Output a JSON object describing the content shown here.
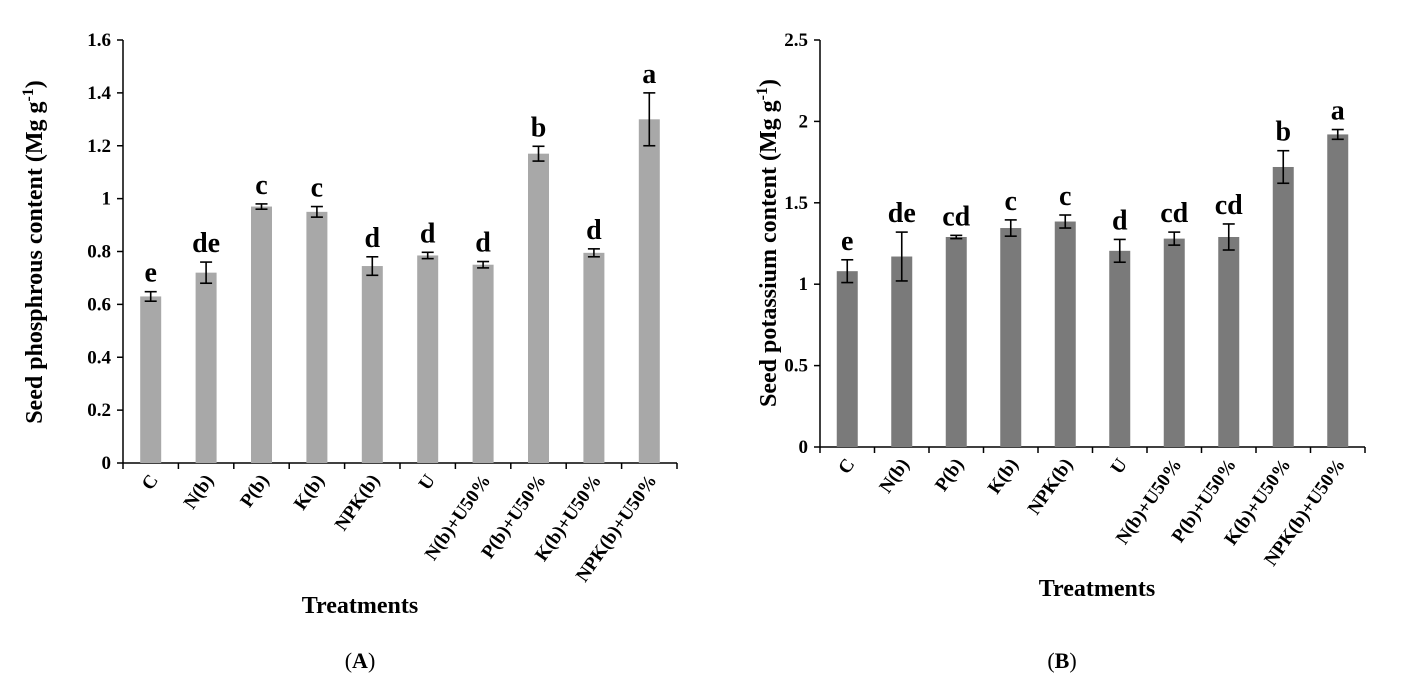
{
  "chart_data": [
    {
      "type": "bar",
      "panel": "A",
      "title": "",
      "xlabel": "Treatments",
      "ylabel": "Seed phosphrous content (Mg g-1)",
      "ylabel_main": "Seed phosphrous content (Mg g",
      "ylabel_sup": "-1",
      "ylabel_end": ")",
      "ylim": [
        0,
        1.6
      ],
      "yticks": [
        "0",
        "0.2",
        "0.4",
        "0.6",
        "0.8",
        "1",
        "1.2",
        "1.4",
        "1.6"
      ],
      "ytick_values": [
        0,
        0.2,
        0.4,
        0.6,
        0.8,
        1.0,
        1.2,
        1.4,
        1.6
      ],
      "categories": [
        "C",
        "N(b)",
        "P(b)",
        "K(b)",
        "NPK(b)",
        "U",
        "N(b)+U50%",
        "P(b)+U50%",
        "K(b)+U50%",
        "NPK(b)+U50%"
      ],
      "values": [
        0.63,
        0.72,
        0.97,
        0.95,
        0.745,
        0.785,
        0.75,
        1.17,
        0.795,
        1.3
      ],
      "errors": [
        0.018,
        0.04,
        0.01,
        0.02,
        0.035,
        0.012,
        0.012,
        0.028,
        0.015,
        0.1
      ],
      "letters": [
        "e",
        "de",
        "c",
        "c",
        "d",
        "d",
        "d",
        "b",
        "d",
        "a"
      ],
      "bar_color": "#a8a8a8"
    },
    {
      "type": "bar",
      "panel": "B",
      "title": "",
      "xlabel": "Treatments",
      "ylabel": "Seed potassium content (Mg g-1)",
      "ylabel_main": "Seed potassium content (Mg g",
      "ylabel_sup": "-1",
      "ylabel_end": ")",
      "ylim": [
        0,
        2.5
      ],
      "yticks": [
        "0",
        "0.5",
        "1",
        "1.5",
        "2",
        "2.5"
      ],
      "ytick_values": [
        0,
        0.5,
        1.0,
        1.5,
        2.0,
        2.5
      ],
      "categories": [
        "C",
        "N(b)",
        "P(b)",
        "K(b)",
        "NPK(b)",
        "U",
        "N(b)+U50%",
        "P(b)+U50%",
        "K(b)+U50%",
        "NPK(b)+U50%"
      ],
      "values": [
        1.08,
        1.17,
        1.29,
        1.345,
        1.385,
        1.205,
        1.28,
        1.29,
        1.72,
        1.92
      ],
      "errors": [
        0.07,
        0.15,
        0.01,
        0.05,
        0.04,
        0.07,
        0.04,
        0.08,
        0.1,
        0.03
      ],
      "letters": [
        "e",
        "de",
        "cd",
        "c",
        "c",
        "d",
        "cd",
        "cd",
        "b",
        "a"
      ],
      "bar_color": "#7a7a7a"
    }
  ],
  "panel_labels": {
    "a_open": "(",
    "a_letter": "A",
    "a_close": ")",
    "b_open": "(",
    "b_letter": "B",
    "b_close": ")"
  }
}
